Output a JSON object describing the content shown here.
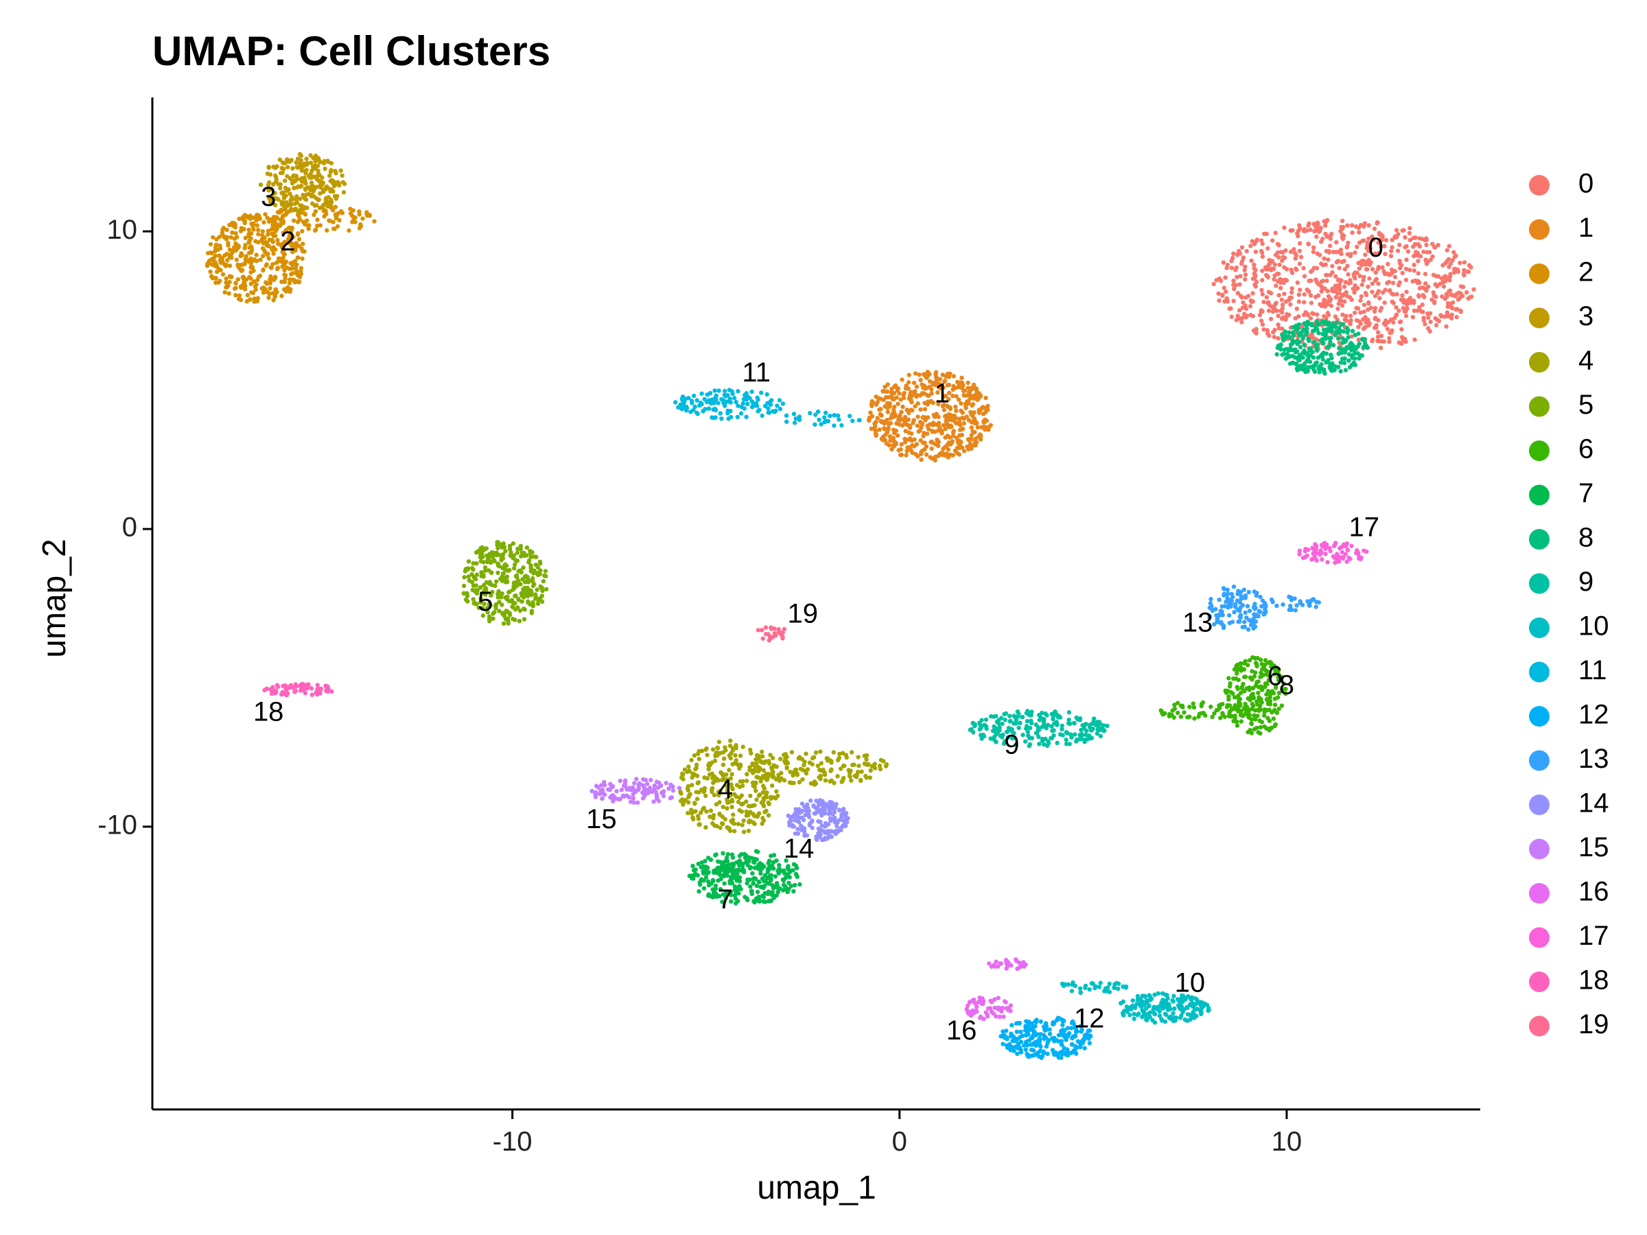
{
  "chart_data": {
    "type": "scatter",
    "title": "UMAP: Cell Clusters",
    "xlabel": "umap_1",
    "ylabel": "umap_2",
    "xlim": [
      -19.3,
      15
    ],
    "ylim": [
      -19.5,
      14.5
    ],
    "x_ticks": [
      -10,
      0,
      10
    ],
    "y_ticks": [
      10,
      0,
      -10
    ],
    "grid": false,
    "legend_position": "right",
    "legend": [
      "0",
      "1",
      "2",
      "3",
      "4",
      "5",
      "6",
      "7",
      "8",
      "9",
      "10",
      "11",
      "12",
      "13",
      "14",
      "15",
      "16",
      "17",
      "18",
      "19"
    ],
    "clusters": [
      {
        "name": "0",
        "color": "#F8766D",
        "label_pos": [
          12.3,
          9.4
        ],
        "blobs": [
          {
            "cx": 11.5,
            "cy": 8.2,
            "rx": 3.4,
            "ry": 2.2,
            "n": 900
          }
        ]
      },
      {
        "name": "1",
        "color": "#E7861B",
        "label_pos": [
          1.1,
          4.5
        ],
        "blobs": [
          {
            "cx": 0.8,
            "cy": 3.8,
            "rx": 1.6,
            "ry": 1.5,
            "n": 520
          }
        ]
      },
      {
        "name": "2",
        "color": "#D89000",
        "label_pos": [
          -15.8,
          9.6
        ],
        "blobs": [
          {
            "cx": -16.6,
            "cy": 9.1,
            "rx": 1.3,
            "ry": 1.5,
            "n": 420
          },
          {
            "cx": -15.0,
            "cy": 10.4,
            "rx": 1.5,
            "ry": 0.45,
            "n": 90
          }
        ]
      },
      {
        "name": "3",
        "color": "#C09B00",
        "label_pos": [
          -16.3,
          11.1
        ],
        "blobs": [
          {
            "cx": -15.4,
            "cy": 11.6,
            "rx": 1.1,
            "ry": 1.0,
            "n": 260
          }
        ]
      },
      {
        "name": "4",
        "color": "#A3A500",
        "label_pos": [
          -4.5,
          -8.8
        ],
        "blobs": [
          {
            "cx": -4.4,
            "cy": -8.7,
            "rx": 1.3,
            "ry": 1.6,
            "n": 300
          },
          {
            "cx": -2.1,
            "cy": -8.0,
            "rx": 1.8,
            "ry": 0.6,
            "n": 150
          }
        ]
      },
      {
        "name": "5",
        "color": "#7CAE00",
        "label_pos": [
          -10.7,
          -2.5
        ],
        "blobs": [
          {
            "cx": -10.2,
            "cy": -1.8,
            "rx": 1.1,
            "ry": 1.4,
            "n": 330
          }
        ]
      },
      {
        "name": "6",
        "color": "#39B600",
        "label_pos": [
          9.7,
          -5.0
        ],
        "blobs": [
          {
            "cx": 9.2,
            "cy": -5.6,
            "rx": 0.8,
            "ry": 1.3,
            "n": 220
          },
          {
            "cx": 7.8,
            "cy": -6.1,
            "rx": 1.2,
            "ry": 0.3,
            "n": 60
          }
        ]
      },
      {
        "name": "7",
        "color": "#00BB4E",
        "label_pos": [
          -4.5,
          -12.5
        ],
        "blobs": [
          {
            "cx": -4.0,
            "cy": -11.7,
            "rx": 1.5,
            "ry": 0.9,
            "n": 320
          }
        ]
      },
      {
        "name": "8",
        "color": "#00BF7D",
        "label_pos": [
          10.0,
          -5.3
        ],
        "blobs": [
          {
            "cx": 10.9,
            "cy": 6.1,
            "rx": 1.2,
            "ry": 0.9,
            "n": 280
          }
        ]
      },
      {
        "name": "9",
        "color": "#00C1A3",
        "label_pos": [
          2.9,
          -7.3
        ],
        "blobs": [
          {
            "cx": 3.6,
            "cy": -6.7,
            "rx": 1.8,
            "ry": 0.6,
            "n": 220
          }
        ]
      },
      {
        "name": "10",
        "color": "#00BFC4",
        "label_pos": [
          7.5,
          -15.3
        ],
        "blobs": [
          {
            "cx": 6.8,
            "cy": -16.1,
            "rx": 1.2,
            "ry": 0.5,
            "n": 180
          },
          {
            "cx": 5.0,
            "cy": -15.4,
            "rx": 1.0,
            "ry": 0.2,
            "n": 40
          }
        ]
      },
      {
        "name": "11",
        "color": "#00BAE0",
        "label_pos": [
          -3.7,
          5.2
        ],
        "blobs": [
          {
            "cx": -4.4,
            "cy": 4.2,
            "rx": 1.4,
            "ry": 0.5,
            "n": 130
          },
          {
            "cx": -2.0,
            "cy": 3.7,
            "rx": 1.1,
            "ry": 0.25,
            "n": 30
          }
        ]
      },
      {
        "name": "12",
        "color": "#00B0F6",
        "label_pos": [
          4.9,
          -16.5
        ],
        "blobs": [
          {
            "cx": 3.8,
            "cy": -17.1,
            "rx": 1.2,
            "ry": 0.7,
            "n": 230
          }
        ]
      },
      {
        "name": "13",
        "color": "#35A2FF",
        "label_pos": [
          7.7,
          -3.2
        ],
        "blobs": [
          {
            "cx": 8.7,
            "cy": -2.7,
            "rx": 0.8,
            "ry": 0.8,
            "n": 120
          },
          {
            "cx": 10.1,
            "cy": -2.5,
            "rx": 0.8,
            "ry": 0.25,
            "n": 30
          }
        ]
      },
      {
        "name": "14",
        "color": "#9590FF",
        "label_pos": [
          -2.6,
          -10.8
        ],
        "blobs": [
          {
            "cx": -2.1,
            "cy": -9.8,
            "rx": 0.8,
            "ry": 0.7,
            "n": 180
          }
        ]
      },
      {
        "name": "15",
        "color": "#C77CFF",
        "label_pos": [
          -7.7,
          -9.8
        ],
        "blobs": [
          {
            "cx": -6.8,
            "cy": -8.8,
            "rx": 1.3,
            "ry": 0.4,
            "n": 110
          }
        ]
      },
      {
        "name": "16",
        "color": "#E76BF3",
        "label_pos": [
          1.6,
          -16.9
        ],
        "blobs": [
          {
            "cx": 2.3,
            "cy": -16.1,
            "rx": 0.6,
            "ry": 0.4,
            "n": 60
          },
          {
            "cx": 2.8,
            "cy": -14.6,
            "rx": 0.5,
            "ry": 0.2,
            "n": 30
          }
        ]
      },
      {
        "name": "17",
        "color": "#FA62DB",
        "label_pos": [
          12.0,
          0.0
        ],
        "blobs": [
          {
            "cx": 11.2,
            "cy": -0.8,
            "rx": 0.9,
            "ry": 0.35,
            "n": 80
          }
        ]
      },
      {
        "name": "18",
        "color": "#FF62BC",
        "label_pos": [
          -16.3,
          -6.2
        ],
        "blobs": [
          {
            "cx": -15.5,
            "cy": -5.4,
            "rx": 1.0,
            "ry": 0.2,
            "n": 70
          }
        ]
      },
      {
        "name": "19",
        "color": "#FF6C91",
        "label_pos": [
          -2.5,
          -2.9
        ],
        "blobs": [
          {
            "cx": -3.3,
            "cy": -3.5,
            "rx": 0.4,
            "ry": 0.25,
            "n": 24
          }
        ]
      }
    ]
  }
}
